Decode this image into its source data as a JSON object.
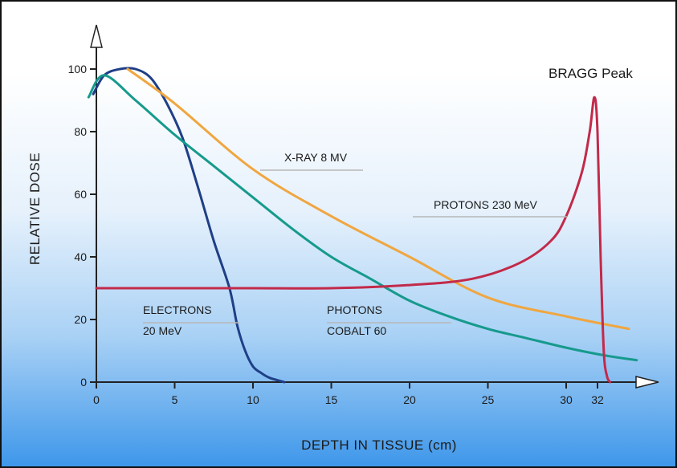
{
  "chart_data": {
    "type": "line",
    "xlabel": "DEPTH IN TISSUE (cm)",
    "ylabel": "RELATIVE DOSE",
    "xlim": [
      -0.5,
      34.5
    ],
    "ylim": [
      0,
      100
    ],
    "x_ticks": [
      {
        "value": 0,
        "label": "0"
      },
      {
        "value": 5,
        "label": "5"
      },
      {
        "value": 10,
        "label": "10"
      },
      {
        "value": 15,
        "label": "15"
      },
      {
        "value": 20,
        "label": "20"
      },
      {
        "value": 25,
        "label": "25"
      },
      {
        "value": 30,
        "label": "30"
      },
      {
        "value": 32,
        "label": "32"
      }
    ],
    "y_ticks": [
      {
        "value": 0,
        "label": "0"
      },
      {
        "value": 20,
        "label": "20"
      },
      {
        "value": 40,
        "label": "40"
      },
      {
        "value": 60,
        "label": "60"
      },
      {
        "value": 80,
        "label": "80"
      },
      {
        "value": 100,
        "label": "100"
      }
    ],
    "annotation": "BRAGG Peak",
    "series": [
      {
        "name": "ELECTRONS 20 MeV",
        "label_lines": [
          "ELECTRONS",
          "20 MeV"
        ],
        "color": "#1f3f86",
        "x": [
          -0.2,
          0.5,
          1.5,
          2.5,
          3.5,
          4.5,
          5.5,
          6.5,
          7.5,
          8.5,
          9.0,
          9.5,
          10.0,
          10.5,
          11.0,
          11.5,
          12.0
        ],
        "y": [
          92,
          98,
          100,
          100,
          97,
          89,
          78,
          62,
          45,
          30,
          18,
          10,
          5,
          3,
          1.5,
          0.7,
          0
        ]
      },
      {
        "name": "PHOTONS COBALT 60",
        "label_lines": [
          "PHOTONS",
          "COBALT 60"
        ],
        "color": "#169a8c",
        "x": [
          -0.5,
          0.5,
          2.5,
          5,
          7.5,
          10,
          12.5,
          15,
          17.5,
          20,
          22.5,
          25,
          27.5,
          30,
          32.5,
          34.5
        ],
        "y": [
          91,
          98,
          90,
          79,
          69,
          59,
          49,
          40,
          33,
          26,
          21,
          17,
          14,
          11,
          8.5,
          7
        ]
      },
      {
        "name": "X-RAY 8 MV",
        "label_lines": [
          "X-RAY 8 MV"
        ],
        "color": "#f0a640",
        "x": [
          2,
          5,
          10,
          15,
          20,
          25,
          30,
          34
        ],
        "y": [
          100,
          89,
          68,
          53,
          40,
          27,
          21,
          17
        ]
      },
      {
        "name": "PROTONS 230 MeV",
        "label_lines": [
          "PROTONS 230 MeV"
        ],
        "color": "#c22a4a",
        "x": [
          0,
          5,
          10,
          15,
          20,
          24,
          27,
          29,
          30,
          31,
          31.5,
          31.8,
          32.0,
          32.2,
          32.4,
          32.6,
          32.8
        ],
        "y": [
          30,
          30,
          30,
          30,
          31,
          33,
          38,
          45,
          53,
          67,
          80,
          91,
          80,
          40,
          10,
          2,
          0
        ]
      }
    ]
  }
}
